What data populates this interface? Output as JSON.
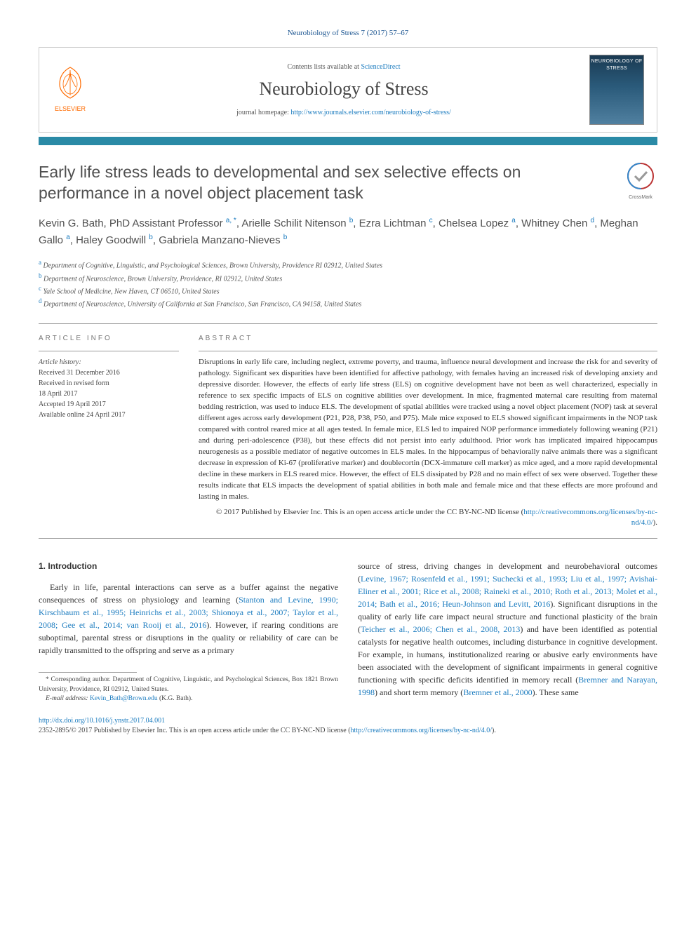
{
  "header": {
    "citation": "Neurobiology of Stress 7 (2017) 57–67",
    "contents_prefix": "Contents lists available at ",
    "contents_link": "ScienceDirect",
    "journal_name": "Neurobiology of Stress",
    "homepage_prefix": "journal homepage: ",
    "homepage_url": "http://www.elsevier.com/locate/ynstr",
    "homepage_display": "http://www.journals.elsevier.com/neurobiology-of-stress/",
    "publisher": "ELSEVIER",
    "cover_title": "NEUROBIOLOGY OF STRESS"
  },
  "crossmark_label": "CrossMark",
  "article": {
    "title": "Early life stress leads to developmental and sex selective effects on performance in a novel object placement task",
    "authors_html": "Kevin G. Bath, PhD Assistant Professor <sup>a, *</sup>, Arielle Schilit Nitenson <sup>b</sup>, Ezra Lichtman <sup>c</sup>, Chelsea Lopez <sup>a</sup>, Whitney Chen <sup>d</sup>, Meghan Gallo <sup>a</sup>, Haley Goodwill <sup>b</sup>, Gabriela Manzano-Nieves <sup>b</sup>",
    "affiliations": [
      {
        "sup": "a",
        "text": "Department of Cognitive, Linguistic, and Psychological Sciences, Brown University, Providence RI 02912, United States"
      },
      {
        "sup": "b",
        "text": "Department of Neuroscience, Brown University, Providence, RI 02912, United States"
      },
      {
        "sup": "c",
        "text": "Yale School of Medicine, New Haven, CT 06510, United States"
      },
      {
        "sup": "d",
        "text": "Department of Neuroscience, University of California at San Francisco, San Francisco, CA 94158, United States"
      }
    ]
  },
  "info": {
    "heading": "ARTICLE INFO",
    "history_label": "Article history:",
    "lines": [
      "Received 31 December 2016",
      "Received in revised form",
      "18 April 2017",
      "Accepted 19 April 2017",
      "Available online 24 April 2017"
    ]
  },
  "abstract": {
    "heading": "ABSTRACT",
    "text": "Disruptions in early life care, including neglect, extreme poverty, and trauma, influence neural development and increase the risk for and severity of pathology. Significant sex disparities have been identified for affective pathology, with females having an increased risk of developing anxiety and depressive disorder. However, the effects of early life stress (ELS) on cognitive development have not been as well characterized, especially in reference to sex specific impacts of ELS on cognitive abilities over development. In mice, fragmented maternal care resulting from maternal bedding restriction, was used to induce ELS. The development of spatial abilities were tracked using a novel object placement (NOP) task at several different ages across early development (P21, P28, P38, P50, and P75). Male mice exposed to ELS showed significant impairments in the NOP task compared with control reared mice at all ages tested. In female mice, ELS led to impaired NOP performance immediately following weaning (P21) and during peri-adolescence (P38), but these effects did not persist into early adulthood. Prior work has implicated impaired hippocampus neurogenesis as a possible mediator of negative outcomes in ELS males. In the hippocampus of behaviorally naïve animals there was a significant decrease in expression of Ki-67 (proliferative marker) and doublecortin (DCX-immature cell marker) as mice aged, and a more rapid developmental decline in these markers in ELS reared mice. However, the effect of ELS dissipated by P28 and no main effect of sex were observed. Together these results indicate that ELS impacts the development of spatial abilities in both male and female mice and that these effects are more profound and lasting in males.",
    "copyright": "© 2017 Published by Elsevier Inc. This is an open access article under the CC BY-NC-ND license (",
    "license_url": "http://creativecommons.org/licenses/by-nc-nd/4.0/",
    "copyright_close": ")."
  },
  "body": {
    "section_number": "1.",
    "section_title": "Introduction",
    "col1_p1_pre": "Early in life, parental interactions can serve as a buffer against the negative consequences of stress on physiology and learning (",
    "col1_refs1": "Stanton and Levine, 1990; Kirschbaum et al., 1995; Heinrichs et al., 2003; Shionoya et al., 2007; Taylor et al., 2008; Gee et al., 2014; van Rooij et al., 2016",
    "col1_p1_post": "). However, if rearing conditions are suboptimal, parental stress or disruptions in the quality or reliability of care can be rapidly transmitted to the offspring and serve as a primary",
    "col2_p1_pre": "source of stress, driving changes in development and neurobehavioral outcomes (",
    "col2_refs1": "Levine, 1967; Rosenfeld et al., 1991; Suchecki et al., 1993; Liu et al., 1997; Avishai-Eliner et al., 2001; Rice et al., 2008; Raineki et al., 2010; Roth et al., 2013; Molet et al., 2014; Bath et al., 2016; Heun-Johnson and Levitt, 2016",
    "col2_p1_mid": "). Significant disruptions in the quality of early life care impact neural structure and functional plasticity of the brain (",
    "col2_refs2": "Teicher et al., 2006; Chen et al., 2008, 2013",
    "col2_p1_mid2": ") and have been identified as potential catalysts for negative health outcomes, including disturbance in cognitive development. For example, in humans, institutionalized rearing or abusive early environments have been associated with the development of significant impairments in general cognitive functioning with specific deficits identified in memory recall (",
    "col2_refs3": "Bremner and Narayan, 1998",
    "col2_p1_mid3": ") and short term memory (",
    "col2_refs4": "Bremner et al., 2000",
    "col2_p1_end": "). These same"
  },
  "footnote": {
    "corr_label": "* Corresponding author. Department of Cognitive, Linguistic, and Psychological Sciences, Box 1821 Brown University, Providence, RI 02912, United States.",
    "email_label": "E-mail address: ",
    "email": "Kevin_Bath@Brown.edu",
    "email_author": " (K.G. Bath)."
  },
  "footer": {
    "doi": "http://dx.doi.org/10.1016/j.ynstr.2017.04.001",
    "issn_line": "2352-2895/© 2017 Published by Elsevier Inc. This is an open access article under the CC BY-NC-ND license (",
    "license_url": "http://creativecommons.org/licenses/by-nc-nd/4.0/",
    "issn_close": ")."
  },
  "colors": {
    "link": "#1a7bbf",
    "teal_bar": "#2a8aa6",
    "heading_gray": "#505050",
    "elsevier_orange": "#ff6b00"
  }
}
